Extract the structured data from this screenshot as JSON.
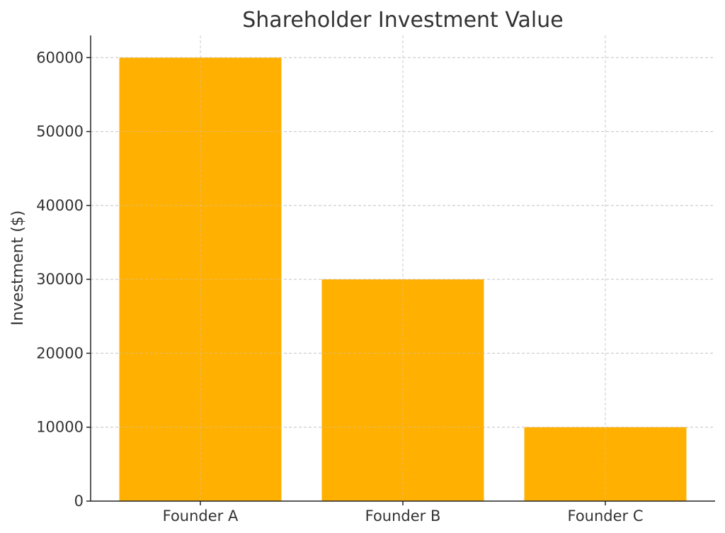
{
  "chart_data": {
    "type": "bar",
    "title": "Shareholder Investment Value",
    "xlabel": "",
    "ylabel": "Investment ($)",
    "categories": [
      "Founder A",
      "Founder B",
      "Founder C"
    ],
    "values": [
      60000,
      30000,
      10000
    ],
    "ylim": [
      0,
      63000
    ],
    "yticks": [
      0,
      10000,
      20000,
      30000,
      40000,
      50000,
      60000
    ],
    "ytick_labels": [
      "0",
      "10000",
      "20000",
      "30000",
      "40000",
      "50000",
      "60000"
    ],
    "grid": true,
    "bar_color": "#FFB000"
  }
}
